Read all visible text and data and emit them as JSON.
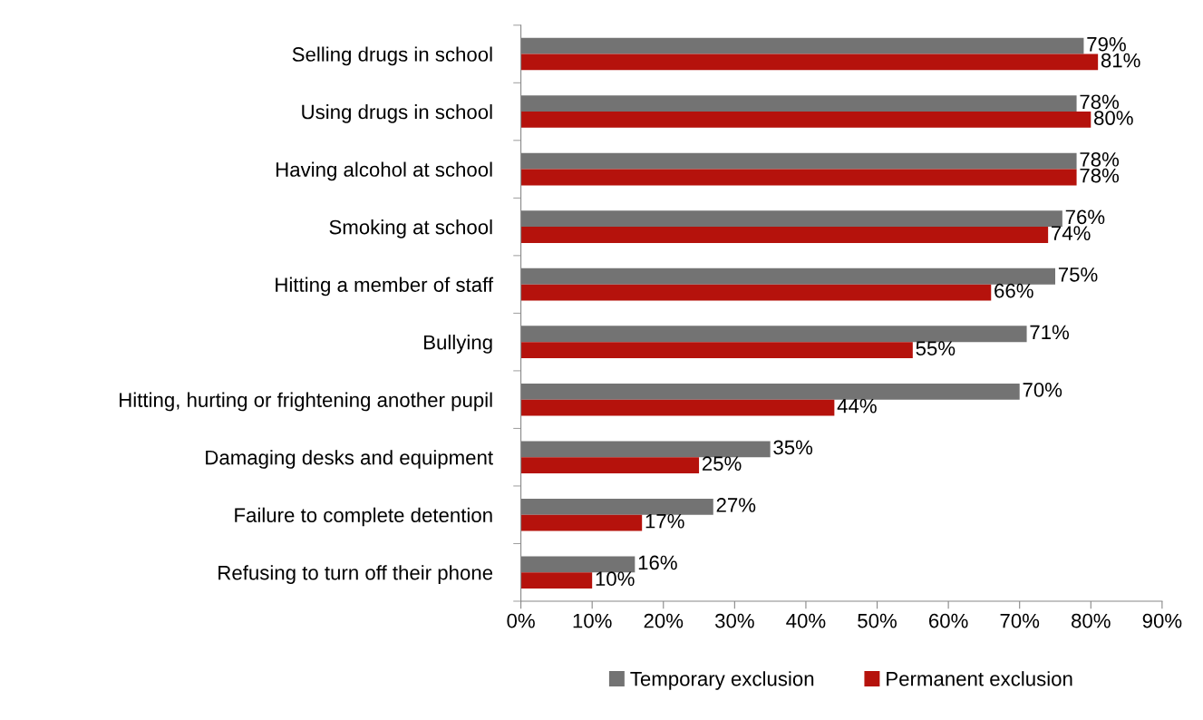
{
  "chart_data": {
    "type": "bar",
    "orientation": "horizontal",
    "categories": [
      "Selling drugs in school",
      "Using drugs in school",
      "Having alcohol at school",
      "Smoking at school",
      "Hitting a member of staff",
      "Bullying",
      "Hitting, hurting or frightening another pupil",
      "Damaging desks and equipment",
      "Failure to complete detention",
      "Refusing to turn off their phone"
    ],
    "series": [
      {
        "name": "Temporary exclusion",
        "color": "#737373",
        "values": [
          79,
          78,
          78,
          76,
          75,
          71,
          70,
          35,
          27,
          16
        ],
        "value_labels": [
          "79%",
          "78%",
          "78%",
          "76%",
          "75%",
          "71%",
          "70%",
          "35%",
          "27%",
          "16%"
        ]
      },
      {
        "name": "Permanent exclusion",
        "color": "#b5120c",
        "values": [
          81,
          80,
          78,
          74,
          66,
          55,
          44,
          25,
          17,
          10
        ],
        "value_labels": [
          "81%",
          "80%",
          "78%",
          "74%",
          "66%",
          "55%",
          "44%",
          "25%",
          "17%",
          "10%"
        ]
      }
    ],
    "xlim": [
      0,
      90
    ],
    "xticks": [
      {
        "value": 0,
        "label": "0%"
      },
      {
        "value": 10,
        "label": "10%"
      },
      {
        "value": 20,
        "label": "20%"
      },
      {
        "value": 30,
        "label": "30%"
      },
      {
        "value": 40,
        "label": "40%"
      },
      {
        "value": 50,
        "label": "50%"
      },
      {
        "value": 60,
        "label": "60%"
      },
      {
        "value": 70,
        "label": "70%"
      },
      {
        "value": 80,
        "label": "80%"
      },
      {
        "value": 90,
        "label": "90%"
      }
    ],
    "grid": false,
    "legend": "bottom"
  }
}
